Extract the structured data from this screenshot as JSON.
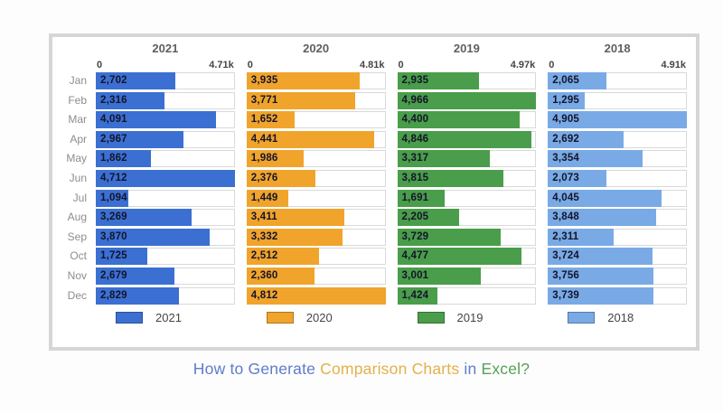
{
  "title": {
    "parts": [
      {
        "text": "How to Generate ",
        "color": "#5e7cca"
      },
      {
        "text": "Comparison Charts",
        "color": "#e3b14a"
      },
      {
        "text": " in ",
        "color": "#5e7cca"
      },
      {
        "text": "Excel?",
        "color": "#57a057"
      }
    ]
  },
  "chart_data": {
    "type": "bar",
    "orientation": "horizontal",
    "grid": "off",
    "legend_position": "bottom-per-column",
    "categories": [
      "Jan",
      "Feb",
      "Mar",
      "Apr",
      "May",
      "Jun",
      "Jul",
      "Aug",
      "Sep",
      "Oct",
      "Nov",
      "Dec"
    ],
    "axis_min_label": "0",
    "series": [
      {
        "name": "2021",
        "color": "#3b70d2",
        "axis_max_label": "4.71k",
        "axis_max": 4710,
        "values": [
          2702,
          2316,
          4091,
          2967,
          1862,
          4712,
          1094,
          3269,
          3870,
          1725,
          2679,
          2829
        ]
      },
      {
        "name": "2020",
        "color": "#f0a42c",
        "axis_max_label": "4.81k",
        "axis_max": 4810,
        "values": [
          3935,
          3771,
          1652,
          4441,
          1986,
          2376,
          1449,
          3411,
          3332,
          2512,
          2360,
          4812
        ]
      },
      {
        "name": "2019",
        "color": "#4a9d4a",
        "axis_max_label": "4.97k",
        "axis_max": 4970,
        "values": [
          2935,
          4966,
          4400,
          4846,
          3317,
          3815,
          1691,
          2205,
          3729,
          4477,
          3001,
          1424
        ]
      },
      {
        "name": "2018",
        "color": "#79aae5",
        "axis_max_label": "4.91k",
        "axis_max": 4910,
        "values": [
          2065,
          1295,
          4905,
          2692,
          3354,
          2073,
          4045,
          3848,
          2311,
          3724,
          3756,
          3739
        ]
      }
    ]
  }
}
